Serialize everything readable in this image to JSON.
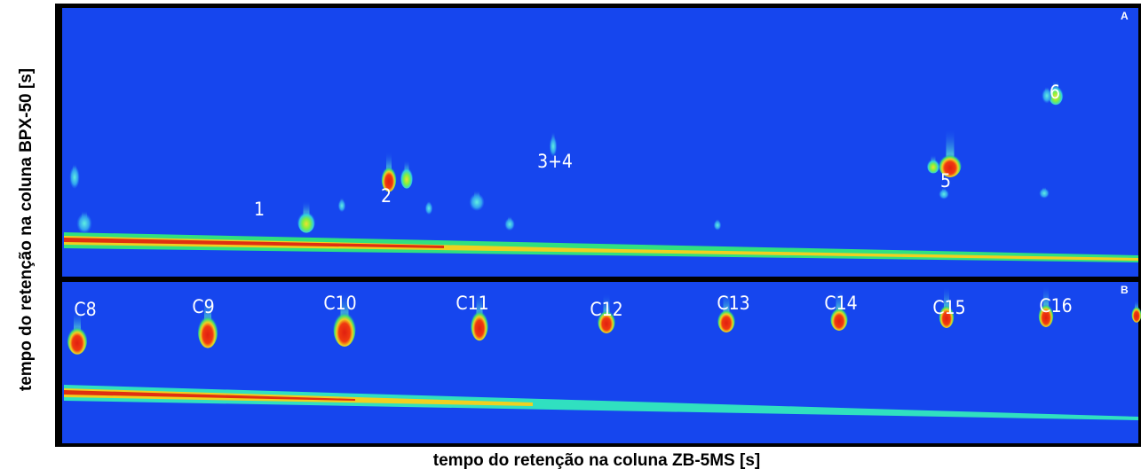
{
  "figure": {
    "x_label": "tempo do retenção na coluna ZB-5MS [s]",
    "y_label": "tempo do retenção na coluna BPX-50 [s]",
    "panels": [
      {
        "letter": "A",
        "peaks": [
          "1",
          "2",
          "3+4",
          "5",
          "6"
        ]
      },
      {
        "letter": "B",
        "peaks": [
          "C8",
          "C9",
          "C10",
          "C11",
          "C12",
          "C13",
          "C14",
          "C15",
          "C16"
        ]
      }
    ]
  }
}
